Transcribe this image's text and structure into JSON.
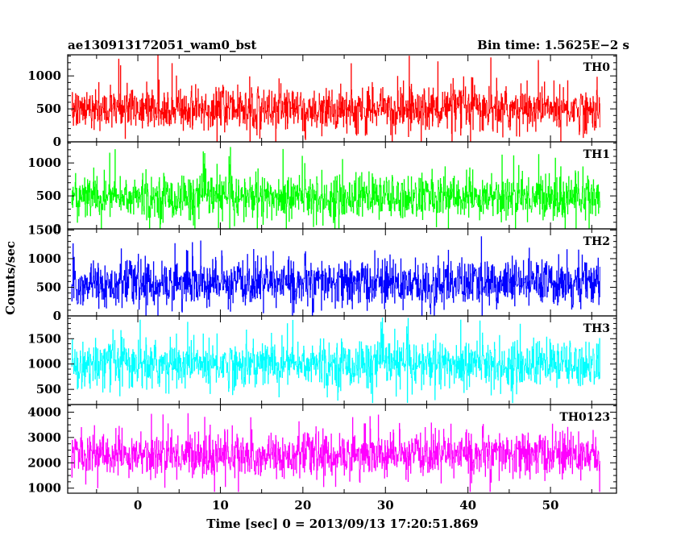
{
  "chart_data": {
    "type": "line",
    "title_left": "ae130913172051_wam0_bst",
    "title_right": "Bin time: 1.5625E−2 s",
    "xlabel": "Time [sec] 0 = 2013/09/13 17:20:51.869",
    "ylabel": "Counts/sec",
    "xlim": [
      -8.5,
      58
    ],
    "data_range": [
      -8,
      56
    ],
    "bin_time": 0.015625,
    "x_ticks": [
      0,
      10,
      20,
      30,
      40,
      50
    ],
    "x_tick_labels": [
      "0",
      "10",
      "20",
      "30",
      "40",
      "50"
    ],
    "panels": [
      {
        "series_name": "TH0",
        "color": "#ff0000",
        "ylim": [
          0,
          1320
        ],
        "y_ticks": [
          0,
          500,
          1000
        ],
        "y_tick_labels": [
          "0",
          "500",
          "1000"
        ],
        "mean": 500,
        "typical_low": 130,
        "typical_high": 820,
        "min": 0,
        "max": 1320
      },
      {
        "series_name": "TH1",
        "color": "#00ff00",
        "ylim": [
          0,
          1320
        ],
        "y_ticks": [
          0,
          500,
          1000
        ],
        "y_tick_labels": [
          "0",
          "500",
          "1000"
        ],
        "mean": 480,
        "typical_low": 120,
        "typical_high": 820,
        "min": 0,
        "max": 1250
      },
      {
        "series_name": "TH2",
        "color": "#0000ff",
        "ylim": [
          0,
          1520
        ],
        "y_ticks": [
          0,
          500,
          1000,
          1500
        ],
        "y_tick_labels": [
          "0",
          "500",
          "1000",
          "1500"
        ],
        "mean": 560,
        "typical_low": 170,
        "typical_high": 1000,
        "min": 0,
        "max": 1480
      },
      {
        "series_name": "TH3",
        "color": "#00ffff",
        "ylim": [
          200,
          1950
        ],
        "y_ticks": [
          500,
          1000,
          1500
        ],
        "y_tick_labels": [
          "500",
          "1000",
          "1500"
        ],
        "mean": 1000,
        "typical_low": 520,
        "typical_high": 1480,
        "min": 230,
        "max": 1920
      },
      {
        "series_name": "TH0123",
        "color": "#ff00ff",
        "ylim": [
          800,
          4300
        ],
        "y_ticks": [
          1000,
          2000,
          3000,
          4000
        ],
        "y_tick_labels": [
          "1000",
          "2000",
          "3000",
          "4000"
        ],
        "mean": 2300,
        "typical_low": 1500,
        "typical_high": 3300,
        "min": 850,
        "max": 4250
      }
    ]
  }
}
